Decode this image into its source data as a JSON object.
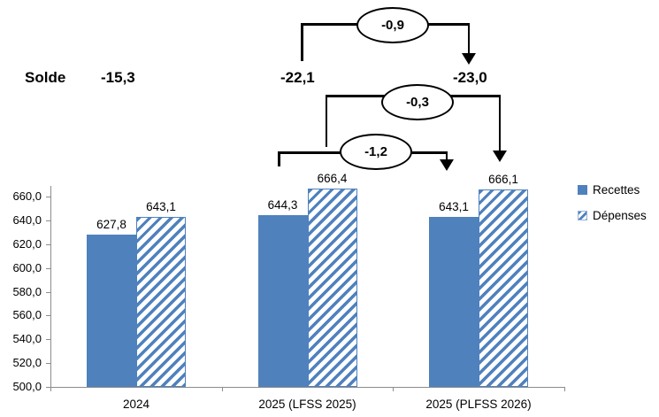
{
  "colors": {
    "bar_blue": "#4F81BD",
    "axis_gray": "#8C8C8C",
    "annotation_black": "#000000"
  },
  "legend": {
    "items": [
      {
        "label": "Recettes",
        "marker": "solid-square"
      },
      {
        "label": "Dépenses",
        "marker": "hatched-square"
      }
    ]
  },
  "chart_data": {
    "type": "bar",
    "title": "",
    "xlabel": "",
    "ylabel": "",
    "categories": [
      "2024",
      "2025 (LFSS 2025)",
      "2025 (PLFSS 2026)"
    ],
    "series": [
      {
        "name": "Recettes",
        "style": "solid",
        "values": [
          627.8,
          644.3,
          643.1
        ],
        "labels": [
          "627,8",
          "644,3",
          "643,1"
        ]
      },
      {
        "name": "Dépenses",
        "style": "hatched",
        "values": [
          643.1,
          666.4,
          666.1
        ],
        "labels": [
          "643,1",
          "666,4",
          "666,1"
        ]
      }
    ],
    "ylim": [
      500,
      660
    ],
    "ytick_step": 20,
    "ytick_labels": [
      "660,0",
      "640,0",
      "620,0",
      "600,0",
      "580,0",
      "560,0",
      "540,0",
      "520,0",
      "500,0"
    ],
    "grid": false,
    "legend_position": "right",
    "annotations": {
      "solde": {
        "label": "Solde",
        "values": [
          "-15,3",
          "-22,1",
          "-23,0"
        ]
      },
      "deltas": [
        "-0,9",
        "-0,3",
        "-1,2"
      ]
    }
  }
}
